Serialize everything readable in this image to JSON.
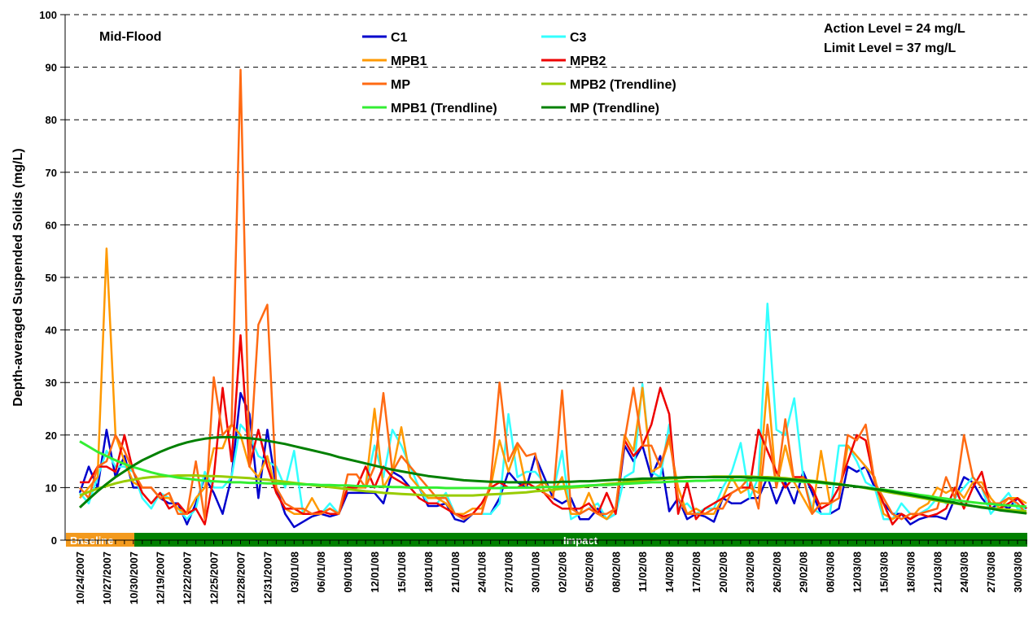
{
  "chart_data": {
    "type": "line",
    "y_label": "Depth-averaged Suspended Solids (mg/L)",
    "annotations": {
      "panel": "Mid-Flood",
      "action_level": "Action Level = 24 mg/L",
      "limit_level": "Limit Level = 37 mg/L"
    },
    "phases": [
      {
        "label": "Baseline",
        "color": "#f39a1e"
      },
      {
        "label": "Impact",
        "color": "#008000"
      }
    ],
    "ylim": [
      0,
      100
    ],
    "yticks": [
      0,
      10,
      20,
      30,
      40,
      50,
      60,
      70,
      80,
      90,
      100
    ],
    "grid": true,
    "categories": [
      "10/24/2007",
      null,
      null,
      "10/27/2007",
      null,
      null,
      "10/30/2007",
      null,
      null,
      "12/19/2007",
      null,
      null,
      "12/22/2007",
      null,
      null,
      "12/25/2007",
      null,
      null,
      "12/28/2007",
      null,
      null,
      "12/31/2007",
      null,
      null,
      "03/01/08",
      null,
      null,
      "06/01/08",
      null,
      null,
      "09/01/08",
      null,
      null,
      "12/01/08",
      null,
      null,
      "15/01/08",
      null,
      null,
      "18/01/08",
      null,
      null,
      "21/01/08",
      null,
      null,
      "24/01/08",
      null,
      null,
      "27/01/08",
      null,
      null,
      "30/01/08",
      null,
      null,
      "02/02/08",
      null,
      null,
      "05/02/08",
      null,
      null,
      "08/02/08",
      null,
      null,
      "11/02/08",
      null,
      null,
      "14/02/08",
      null,
      null,
      "17/02/08",
      null,
      null,
      "20/02/08",
      null,
      null,
      "23/02/08",
      null,
      null,
      "26/02/08",
      null,
      null,
      "29/02/08",
      null,
      null,
      "08/03/08",
      null,
      null,
      "12/03/08",
      null,
      null,
      "15/03/08",
      null,
      null,
      "18/03/08",
      null,
      null,
      "21/03/08",
      null,
      null,
      "24/03/08",
      null,
      null,
      "27/03/08",
      null,
      null,
      "30/03/08",
      null
    ],
    "series": [
      {
        "name": "C1",
        "color": "#0000cc",
        "values": [
          9,
          14,
          10,
          21,
          12,
          16,
          10,
          10,
          10,
          8,
          7,
          7,
          3,
          7,
          12,
          9,
          5,
          12,
          28,
          24,
          8,
          21,
          10,
          5,
          2.5,
          3.5,
          4.5,
          5,
          4.5,
          5,
          9,
          9,
          9,
          9,
          7,
          13,
          12,
          10,
          10,
          6.5,
          6.5,
          7,
          4,
          3.5,
          5,
          5,
          5,
          8,
          13,
          11,
          10,
          16,
          12,
          8,
          7,
          8,
          4,
          4,
          6,
          4,
          5,
          18,
          15,
          18,
          12,
          16,
          5.5,
          8,
          4,
          5,
          4.5,
          3.5,
          8,
          7,
          7,
          8,
          8,
          12,
          7,
          11,
          7,
          13,
          9,
          5,
          5,
          6,
          14,
          13,
          14,
          10,
          7,
          5,
          5,
          3,
          4,
          4.5,
          4.5,
          4,
          8,
          12,
          11,
          8,
          6,
          7,
          6,
          8,
          6
        ]
      },
      {
        "name": "C3",
        "color": "#33ffff",
        "values": [
          9,
          7,
          12,
          17,
          14,
          14,
          13,
          8,
          6,
          9,
          8,
          6,
          4,
          6,
          13,
          10,
          10,
          12,
          22,
          20,
          16,
          15,
          14,
          10,
          17,
          5,
          5,
          5,
          7,
          5,
          10,
          10,
          10,
          18,
          12,
          21,
          18,
          14,
          10,
          7,
          7,
          9,
          5,
          4,
          5,
          5,
          5,
          7,
          24,
          12,
          13,
          13,
          11,
          9,
          17,
          4,
          5,
          6,
          7,
          4,
          5,
          12,
          13,
          29.7,
          13,
          12,
          22,
          6,
          7,
          5,
          6,
          6,
          10,
          13,
          18.5,
          8,
          12,
          45,
          21,
          20,
          27,
          12,
          6,
          5,
          5,
          18,
          18,
          15,
          11,
          10,
          4,
          4,
          7,
          5,
          5,
          6,
          8,
          7,
          8,
          10,
          12,
          10,
          5,
          7,
          9,
          6,
          6
        ]
      },
      {
        "name": "MPB1",
        "color": "#ff9900",
        "values": [
          8,
          10,
          12,
          55.5,
          20,
          15,
          11,
          10,
          10,
          8,
          8,
          6,
          5,
          8,
          10,
          17.5,
          17.5,
          22,
          20,
          14,
          12,
          16,
          9,
          6,
          5,
          5,
          8,
          5,
          6,
          5,
          10,
          10,
          10,
          25,
          10,
          13,
          21.5,
          12,
          10,
          8,
          8,
          7,
          5,
          5,
          6,
          6,
          10,
          19,
          13,
          18,
          10,
          10,
          11,
          9,
          12,
          5,
          5,
          9,
          5,
          4,
          6,
          20,
          17,
          29,
          13,
          14,
          19,
          10,
          5,
          6,
          5,
          5,
          8,
          12,
          9,
          10,
          9,
          30,
          10,
          18,
          11,
          8,
          5,
          17,
          7,
          8,
          18,
          16,
          14,
          12,
          5,
          4,
          5,
          4,
          6,
          7,
          10,
          9,
          10,
          8,
          11,
          11,
          8,
          6,
          8,
          8,
          7
        ]
      },
      {
        "name": "MPB2",
        "color": "#ee0000",
        "values": [
          11,
          11,
          14,
          14,
          13,
          20,
          13,
          9,
          7,
          9,
          6,
          7,
          5,
          6,
          3,
          12,
          29,
          15,
          39,
          14,
          21,
          14,
          9,
          6,
          6,
          5,
          5,
          5.5,
          5,
          5,
          10,
          10,
          14,
          10,
          14,
          12,
          11,
          10,
          8,
          7,
          7,
          6,
          5,
          4.5,
          5,
          7,
          10,
          11,
          10,
          10,
          11,
          10,
          9,
          7,
          6,
          6,
          6,
          7,
          5,
          9,
          5,
          19,
          16,
          18,
          22,
          29,
          24,
          5,
          11,
          4,
          6,
          7,
          8,
          9,
          10,
          10,
          21,
          17,
          13,
          10,
          12,
          12,
          10,
          6,
          7,
          10,
          15,
          20,
          19,
          11,
          7,
          3,
          5,
          4,
          5,
          4.5,
          5,
          6,
          10,
          6,
          10,
          13,
          6,
          6,
          7,
          8,
          6
        ]
      },
      {
        "name": "MP",
        "color": "#ff6a13",
        "values": [
          10,
          8,
          14,
          15,
          20,
          17,
          13,
          10,
          10,
          8,
          9,
          5,
          5,
          15,
          4,
          31,
          20,
          22,
          89.5,
          14,
          41,
          44.8,
          10,
          7,
          6,
          6,
          5,
          5,
          6,
          5,
          12.5,
          12.5,
          10,
          14,
          28,
          13,
          16,
          14,
          12,
          10,
          8,
          8,
          5,
          4,
          5,
          5,
          11,
          30,
          15,
          18.5,
          16,
          16.5,
          9,
          8,
          28.5,
          6,
          5,
          6,
          5,
          5,
          6,
          19,
          29,
          18,
          18,
          14,
          20,
          8,
          5,
          5,
          5,
          6,
          6,
          9,
          10,
          12,
          6,
          22,
          10,
          23,
          11,
          12,
          5,
          7,
          7,
          8,
          20,
          19,
          22,
          11,
          8,
          5,
          4,
          5,
          5,
          5.5,
          6,
          12,
          8,
          20,
          12,
          10,
          7,
          7,
          8,
          7,
          5
        ]
      },
      {
        "name": "MPB2 (Trendline)",
        "color": "#99cc00",
        "values": [
          8.5,
          9.2,
          9.8,
          10.3,
          10.8,
          11.2,
          11.5,
          11.8,
          12,
          12.1,
          12.2,
          12.3,
          12.3,
          12.3,
          12.2,
          12.2,
          12.1,
          12,
          11.9,
          11.8,
          11.6,
          11.5,
          11.3,
          11.1,
          10.9,
          10.7,
          10.5,
          10.3,
          10.1,
          9.9,
          9.7,
          9.5,
          9.3,
          9.2,
          9,
          8.9,
          8.8,
          8.7,
          8.6,
          8.5,
          8.5,
          8.5,
          8.5,
          8.5,
          8.5,
          8.6,
          8.7,
          8.8,
          8.9,
          9,
          9.1,
          9.3,
          9.4,
          9.6,
          9.8,
          10,
          10.1,
          10.3,
          10.5,
          10.7,
          10.8,
          11,
          11.2,
          11.3,
          11.5,
          11.6,
          11.7,
          11.8,
          11.9,
          12,
          12,
          12.1,
          12.1,
          12.1,
          12.1,
          12.1,
          12,
          12,
          11.9,
          11.8,
          11.6,
          11.5,
          11.3,
          11.1,
          10.9,
          10.7,
          10.4,
          10.2,
          9.9,
          9.6,
          9.3,
          9,
          8.7,
          8.4,
          8.1,
          7.8,
          7.5,
          7.2,
          7,
          6.7,
          6.5,
          6.3,
          6.1,
          5.9,
          5.8,
          5.6,
          5.5
        ]
      },
      {
        "name": "MPB1 (Trendline)",
        "color": "#33ee33",
        "values": [
          18.8,
          17.8,
          16.8,
          16,
          15.2,
          14.5,
          13.9,
          13.4,
          12.9,
          12.5,
          12.2,
          11.9,
          11.7,
          11.5,
          11.3,
          11.2,
          11.1,
          11,
          11,
          10.9,
          10.9,
          10.8,
          10.8,
          10.7,
          10.7,
          10.6,
          10.6,
          10.5,
          10.5,
          10.4,
          10.4,
          10.3,
          10.3,
          10.2,
          10.2,
          10.1,
          10.1,
          10,
          10,
          10,
          10,
          9.9,
          9.9,
          9.9,
          9.9,
          9.9,
          9.9,
          9.9,
          10,
          10,
          10,
          10,
          10.1,
          10.1,
          10.2,
          10.2,
          10.3,
          10.4,
          10.5,
          10.5,
          10.6,
          10.7,
          10.8,
          10.9,
          11,
          11,
          11.1,
          11.2,
          11.2,
          11.3,
          11.3,
          11.4,
          11.4,
          11.4,
          11.4,
          11.4,
          11.4,
          11.4,
          11.3,
          11.3,
          11.2,
          11.1,
          11,
          10.9,
          10.7,
          10.6,
          10.4,
          10.2,
          10,
          9.8,
          9.6,
          9.4,
          9.1,
          8.9,
          8.6,
          8.4,
          8.1,
          7.9,
          7.6,
          7.4,
          7.2,
          7,
          6.9,
          6.7,
          6.6,
          6.5,
          6.4
        ]
      },
      {
        "name": "MP (Trendline)",
        "color": "#008000",
        "values": [
          6.2,
          7.8,
          9.3,
          10.7,
          12,
          13.1,
          14.2,
          15.2,
          16,
          16.8,
          17.5,
          18.1,
          18.6,
          19,
          19.3,
          19.5,
          19.6,
          19.6,
          19.5,
          19.4,
          19.2,
          18.9,
          18.6,
          18.3,
          17.9,
          17.5,
          17.1,
          16.7,
          16.3,
          15.8,
          15.4,
          15,
          14.6,
          14.2,
          13.8,
          13.4,
          13.1,
          12.8,
          12.5,
          12.2,
          12,
          11.8,
          11.6,
          11.4,
          11.3,
          11.2,
          11.1,
          11.1,
          11,
          11,
          11,
          11,
          11,
          11,
          11.1,
          11.1,
          11.2,
          11.2,
          11.3,
          11.4,
          11.5,
          11.5,
          11.6,
          11.7,
          11.7,
          11.8,
          11.9,
          11.9,
          12,
          12,
          12,
          12,
          12,
          12,
          12,
          11.9,
          11.9,
          11.8,
          11.7,
          11.6,
          11.5,
          11.3,
          11.2,
          11,
          10.8,
          10.6,
          10.4,
          10.2,
          10,
          9.7,
          9.5,
          9.2,
          8.9,
          8.6,
          8.3,
          8,
          7.7,
          7.4,
          7.1,
          6.8,
          6.5,
          6.2,
          6,
          5.7,
          5.5,
          5.3,
          5.1
        ]
      }
    ]
  }
}
